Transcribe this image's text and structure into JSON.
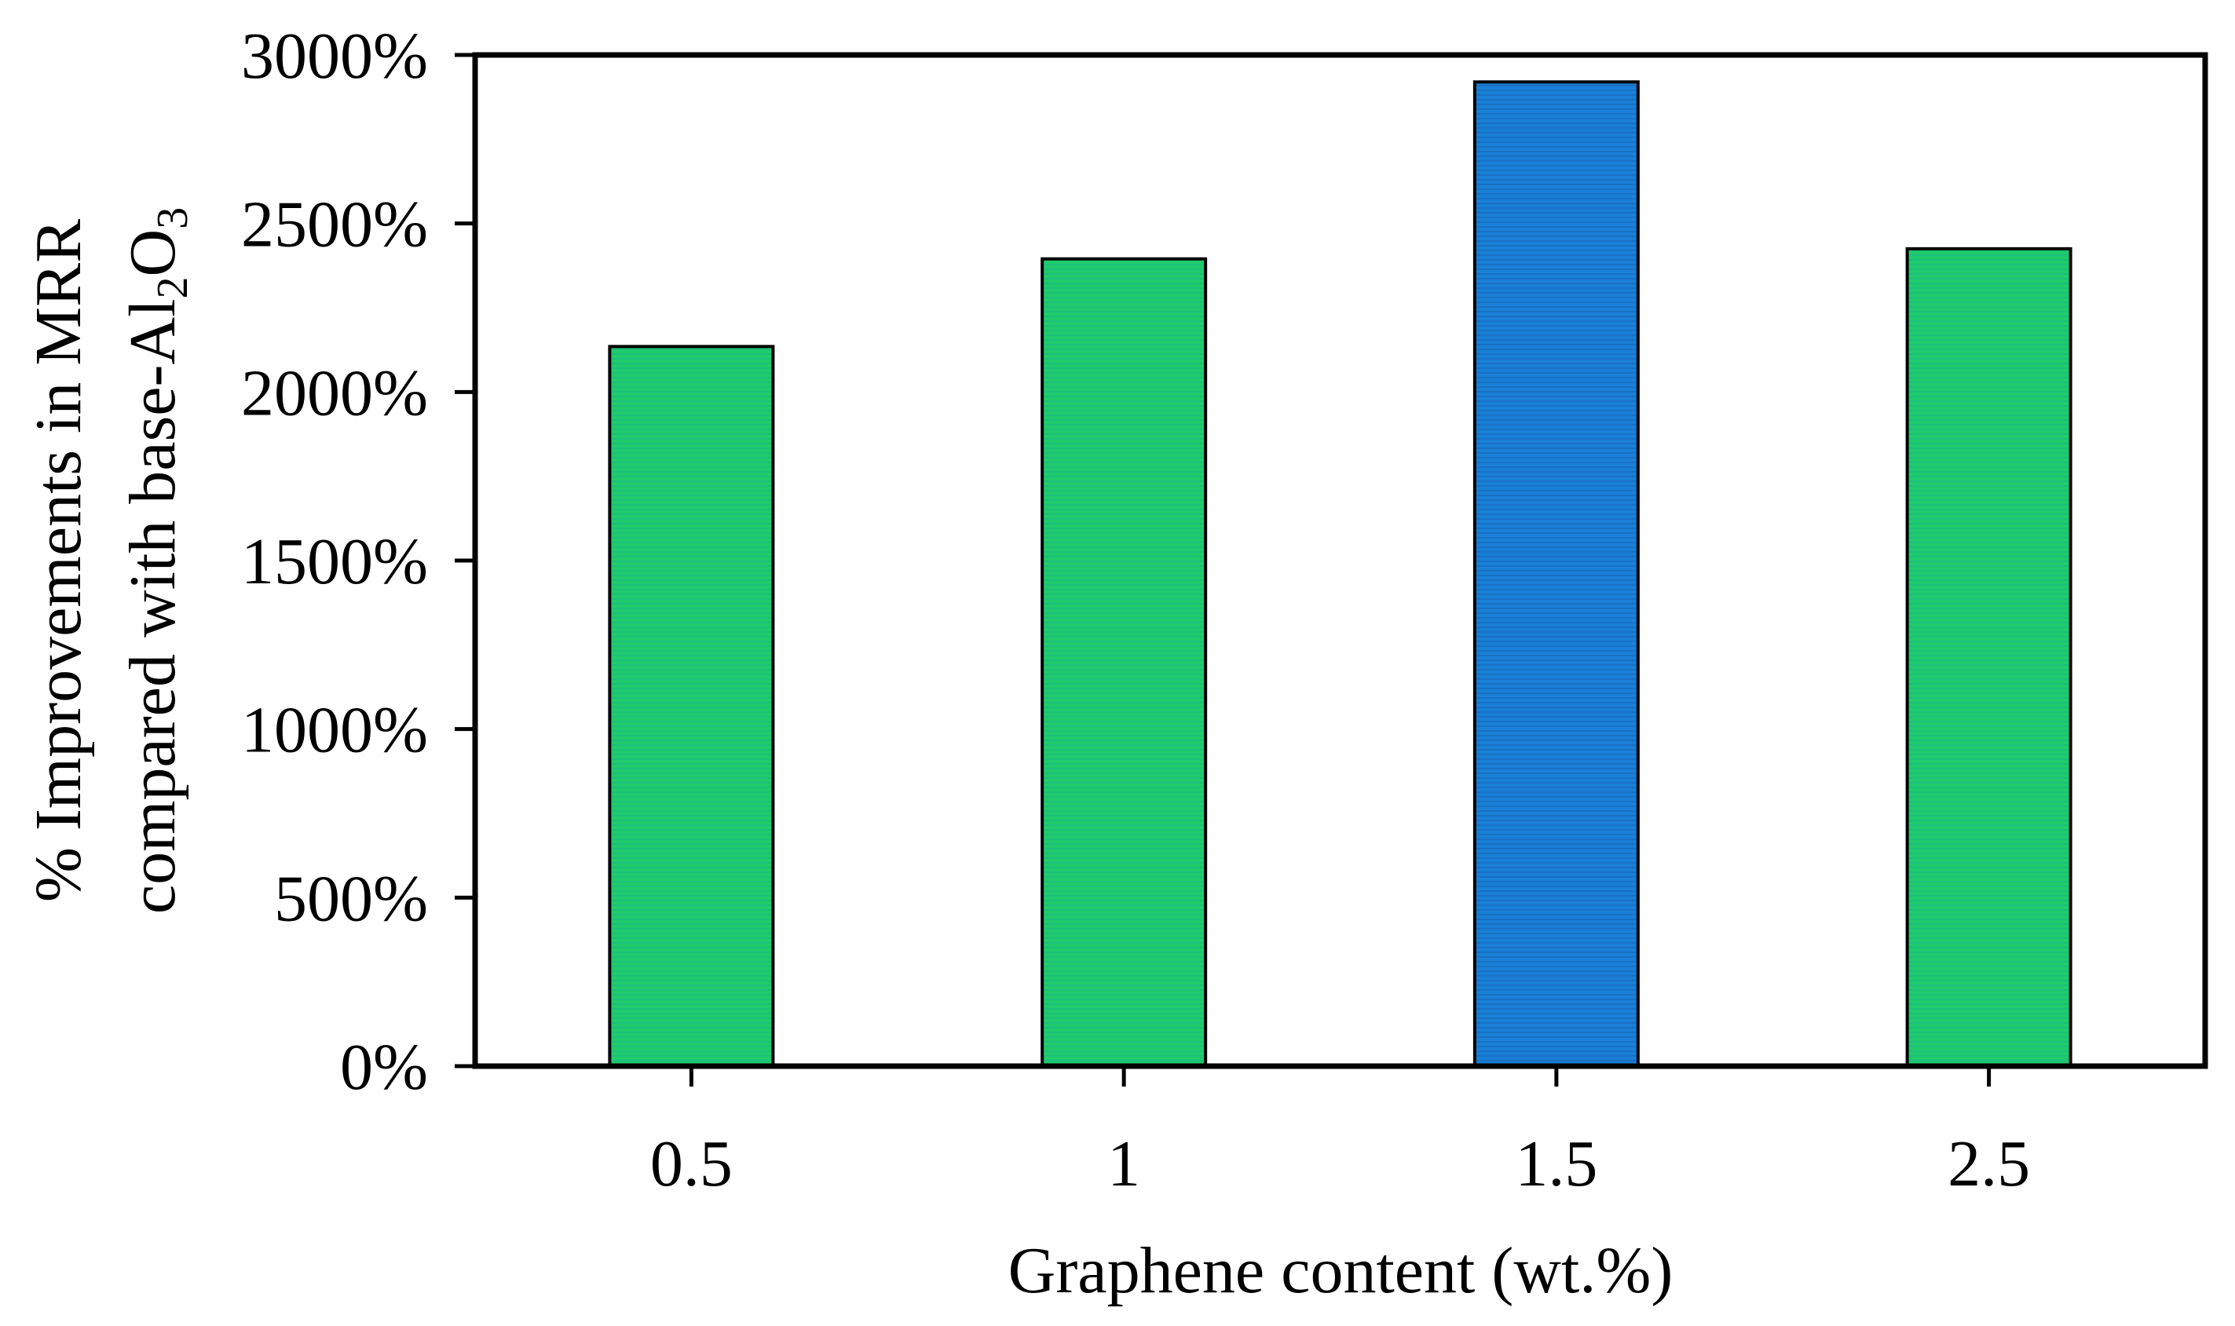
{
  "chart_data": {
    "type": "bar",
    "categories": [
      "0.5",
      "1",
      "1.5",
      "2.5"
    ],
    "series": [
      {
        "values": [
          2135,
          2395,
          2920,
          2425
        ]
      }
    ],
    "bar_colors": [
      "#1fcb6b",
      "#1fcb6b",
      "#1a7fd6",
      "#1fcb6b"
    ],
    "xlabel": "Graphene content (wt.%)",
    "ylabel_line1": "% Improvements  in MRR",
    "ylabel_line2_prefix": "compared with base-Al",
    "ylabel_sub1": "2",
    "ylabel_mid": "O",
    "ylabel_sub2": "3",
    "ylim": [
      0,
      3000
    ],
    "yticks": [
      0,
      500,
      1000,
      1500,
      2000,
      2500,
      3000
    ],
    "ytick_labels": [
      "0%",
      "500%",
      "1000%",
      "1500%",
      "2000%",
      "2500%",
      "3000%"
    ],
    "grid": false,
    "legend": "none"
  }
}
